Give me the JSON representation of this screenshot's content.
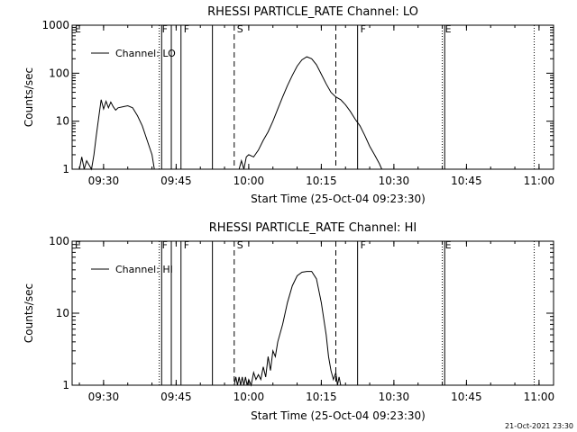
{
  "footer": {
    "timestamp": "21-Oct-2021 23:30"
  },
  "chart_data": [
    {
      "type": "line",
      "title": "RHESSI PARTICLE_RATE Channel: LO",
      "xlabel": "Start Time (25-Oct-04 09:23:30)",
      "ylabel": "Counts/sec",
      "yscale": "log",
      "xlim": [
        "09:23:30",
        "11:03:00"
      ],
      "ylim": [
        1,
        1000
      ],
      "x_ticks": [
        "09:30",
        "09:45",
        "10:00",
        "10:15",
        "10:30",
        "10:45",
        "11:00"
      ],
      "y_ticks": [
        {
          "value": 1,
          "label": "1"
        },
        {
          "value": 10,
          "label": "10"
        },
        {
          "value": 100,
          "label": "100"
        },
        {
          "value": 1000,
          "label": "1000"
        }
      ],
      "legend": {
        "label": "Channel: LO",
        "position": "top-left"
      },
      "series": [
        {
          "name": "Channel: LO",
          "segments": [
            [
              [
                "09:25:00",
                1
              ],
              [
                "09:25:30",
                1.8
              ],
              [
                "09:26:00",
                1
              ],
              [
                "09:26:30",
                1.5
              ],
              [
                "09:27:30",
                1
              ],
              [
                "09:28:00",
                2
              ],
              [
                "09:28:30",
                5
              ],
              [
                "09:29:00",
                12
              ],
              [
                "09:29:30",
                28
              ],
              [
                "09:30:00",
                18
              ],
              [
                "09:30:30",
                26
              ],
              [
                "09:31:00",
                19
              ],
              [
                "09:31:30",
                25
              ],
              [
                "09:32:00",
                20
              ],
              [
                "09:32:30",
                17
              ],
              [
                "09:33:00",
                19
              ],
              [
                "09:34:00",
                20
              ],
              [
                "09:35:00",
                21
              ],
              [
                "09:36:00",
                19
              ],
              [
                "09:37:00",
                13
              ],
              [
                "09:38:00",
                8
              ],
              [
                "09:39:00",
                4
              ],
              [
                "09:40:00",
                2
              ],
              [
                "09:40:30",
                1
              ]
            ],
            [
              [
                "09:58:00",
                1
              ],
              [
                "09:58:30",
                1.5
              ],
              [
                "09:59:00",
                1
              ],
              [
                "09:59:30",
                1.8
              ],
              [
                "10:00:00",
                2
              ],
              [
                "10:01:00",
                1.8
              ],
              [
                "10:02:00",
                2.5
              ],
              [
                "10:03:00",
                4
              ],
              [
                "10:04:00",
                6
              ],
              [
                "10:05:00",
                10
              ],
              [
                "10:06:00",
                18
              ],
              [
                "10:07:00",
                32
              ],
              [
                "10:08:00",
                55
              ],
              [
                "10:09:00",
                90
              ],
              [
                "10:10:00",
                140
              ],
              [
                "10:11:00",
                190
              ],
              [
                "10:12:00",
                220
              ],
              [
                "10:13:00",
                200
              ],
              [
                "10:14:00",
                150
              ],
              [
                "10:15:00",
                95
              ],
              [
                "10:16:00",
                60
              ],
              [
                "10:17:00",
                40
              ],
              [
                "10:18:00",
                32
              ],
              [
                "10:19:00",
                28
              ],
              [
                "10:20:00",
                22
              ],
              [
                "10:21:00",
                16
              ],
              [
                "10:22:00",
                11
              ],
              [
                "10:23:00",
                8
              ],
              [
                "10:24:00",
                5
              ],
              [
                "10:25:00",
                3
              ],
              [
                "10:26:00",
                2
              ],
              [
                "10:27:00",
                1.3
              ],
              [
                "10:27:30",
                1
              ]
            ]
          ]
        }
      ],
      "annotations": [
        {
          "label": "E",
          "time": "09:23:30",
          "style": "dotted"
        },
        {
          "label": "F",
          "time": "09:41:30",
          "style": "dotted"
        },
        {
          "label": "",
          "time": "09:42:00",
          "style": "solid"
        },
        {
          "label": "",
          "time": "09:44:00",
          "style": "solid"
        },
        {
          "label": "F",
          "time": "09:46:00",
          "style": "solid"
        },
        {
          "label": "",
          "time": "09:52:30",
          "style": "solid"
        },
        {
          "label": "S",
          "time": "09:57:00",
          "style": "dashed"
        },
        {
          "label": "",
          "time": "10:18:00",
          "style": "dashed"
        },
        {
          "label": "F",
          "time": "10:22:30",
          "style": "solid"
        },
        {
          "label": "E",
          "time": "10:40:00",
          "style": "dotted"
        },
        {
          "label": "",
          "time": "10:40:30",
          "style": "solid"
        },
        {
          "label": "",
          "time": "10:59:00",
          "style": "dotted"
        }
      ]
    },
    {
      "type": "line",
      "title": "RHESSI PARTICLE_RATE Channel: HI",
      "xlabel": "Start Time (25-Oct-04 09:23:30)",
      "ylabel": "Counts/sec",
      "yscale": "log",
      "xlim": [
        "09:23:30",
        "11:03:00"
      ],
      "ylim": [
        1,
        100
      ],
      "x_ticks": [
        "09:30",
        "09:45",
        "10:00",
        "10:15",
        "10:30",
        "10:45",
        "11:00"
      ],
      "y_ticks": [
        {
          "value": 1,
          "label": "1"
        },
        {
          "value": 10,
          "label": "10"
        },
        {
          "value": 100,
          "label": "100"
        }
      ],
      "legend": {
        "label": "Channel: HI",
        "position": "top-left"
      },
      "series": [
        {
          "name": "Channel: HI",
          "segments": [
            [
              [
                "09:57:00",
                1
              ],
              [
                "09:57:20",
                1.3
              ],
              [
                "09:57:40",
                1
              ],
              [
                "09:58:00",
                1.3
              ],
              [
                "09:58:20",
                1
              ],
              [
                "09:58:40",
                1.3
              ],
              [
                "09:59:00",
                1
              ],
              [
                "09:59:20",
                1.3
              ],
              [
                "09:59:40",
                1
              ],
              [
                "10:00:00",
                1.2
              ],
              [
                "10:00:30",
                1
              ],
              [
                "10:01:00",
                1.5
              ],
              [
                "10:01:30",
                1.2
              ],
              [
                "10:02:00",
                1.4
              ],
              [
                "10:02:30",
                1.2
              ],
              [
                "10:03:00",
                1.8
              ],
              [
                "10:03:30",
                1.3
              ],
              [
                "10:04:00",
                2.5
              ],
              [
                "10:04:30",
                1.6
              ],
              [
                "10:05:00",
                3
              ],
              [
                "10:05:30",
                2.5
              ],
              [
                "10:06:00",
                4
              ],
              [
                "10:07:00",
                7
              ],
              [
                "10:08:00",
                14
              ],
              [
                "10:09:00",
                24
              ],
              [
                "10:10:00",
                33
              ],
              [
                "10:11:00",
                37
              ],
              [
                "10:12:00",
                38
              ],
              [
                "10:13:00",
                38
              ],
              [
                "10:14:00",
                30
              ],
              [
                "10:15:00",
                14
              ],
              [
                "10:16:00",
                5
              ],
              [
                "10:16:30",
                2.5
              ],
              [
                "10:17:00",
                1.6
              ],
              [
                "10:17:30",
                1.2
              ],
              [
                "10:18:00",
                1.5
              ],
              [
                "10:18:20",
                1
              ],
              [
                "10:18:40",
                1.3
              ],
              [
                "10:19:00",
                1
              ]
            ]
          ]
        }
      ],
      "annotations": [
        {
          "label": "E",
          "time": "09:23:30",
          "style": "dotted"
        },
        {
          "label": "F",
          "time": "09:41:30",
          "style": "dotted"
        },
        {
          "label": "",
          "time": "09:42:00",
          "style": "solid"
        },
        {
          "label": "",
          "time": "09:44:00",
          "style": "solid"
        },
        {
          "label": "F",
          "time": "09:46:00",
          "style": "solid"
        },
        {
          "label": "",
          "time": "09:52:30",
          "style": "solid"
        },
        {
          "label": "S",
          "time": "09:57:00",
          "style": "dashed"
        },
        {
          "label": "",
          "time": "10:18:00",
          "style": "dashed"
        },
        {
          "label": "F",
          "time": "10:22:30",
          "style": "solid"
        },
        {
          "label": "E",
          "time": "10:40:00",
          "style": "dotted"
        },
        {
          "label": "",
          "time": "10:40:30",
          "style": "solid"
        },
        {
          "label": "",
          "time": "10:59:00",
          "style": "dotted"
        }
      ]
    }
  ]
}
